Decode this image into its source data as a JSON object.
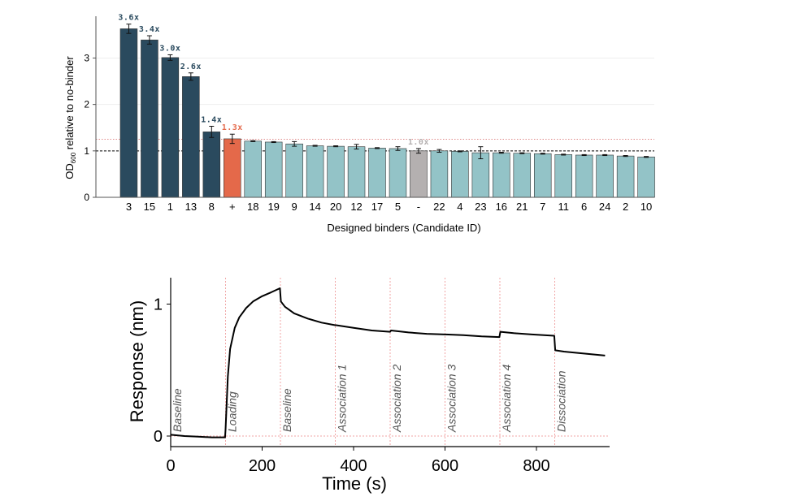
{
  "chart_data": [
    {
      "type": "bar",
      "xlabel": "Designed binders (Candidate ID)",
      "ylabel_prefix": "OD",
      "ylabel_sub": "600",
      "ylabel_suffix": " relative to no-binder",
      "ylim": [
        0,
        3.9
      ],
      "yticks": [
        0,
        1,
        2,
        3
      ],
      "reference_lines": [
        {
          "value": 1.0,
          "style": "dashed",
          "color": "#000000"
        },
        {
          "value": 1.25,
          "style": "dotted",
          "color": "#e08a8a"
        }
      ],
      "colors": {
        "top": "#2a4a5e",
        "positive": "#e4694a",
        "negative": "#b4b0b0",
        "other": "#93c3c7"
      },
      "bars": [
        {
          "id": "3",
          "value": 3.63,
          "err": 0.1,
          "group": "top",
          "label": "3.6x"
        },
        {
          "id": "15",
          "value": 3.39,
          "err": 0.09,
          "group": "top",
          "label": "3.4x"
        },
        {
          "id": "1",
          "value": 3.01,
          "err": 0.06,
          "group": "top",
          "label": "3.0x"
        },
        {
          "id": "13",
          "value": 2.6,
          "err": 0.08,
          "group": "top",
          "label": "2.6x"
        },
        {
          "id": "8",
          "value": 1.41,
          "err": 0.12,
          "group": "top",
          "label": "1.4x"
        },
        {
          "id": "+",
          "value": 1.26,
          "err": 0.1,
          "group": "positive",
          "label": "1.3x"
        },
        {
          "id": "18",
          "value": 1.21,
          "err": 0.01,
          "group": "other"
        },
        {
          "id": "19",
          "value": 1.19,
          "err": 0.01,
          "group": "other"
        },
        {
          "id": "9",
          "value": 1.15,
          "err": 0.05,
          "group": "other"
        },
        {
          "id": "14",
          "value": 1.11,
          "err": 0.01,
          "group": "other"
        },
        {
          "id": "20",
          "value": 1.1,
          "err": 0.01,
          "group": "other"
        },
        {
          "id": "12",
          "value": 1.09,
          "err": 0.05,
          "group": "other"
        },
        {
          "id": "17",
          "value": 1.06,
          "err": 0.01,
          "group": "other"
        },
        {
          "id": "5",
          "value": 1.05,
          "err": 0.04,
          "group": "other"
        },
        {
          "id": "-",
          "value": 1.0,
          "err": 0.05,
          "group": "negative",
          "label": "1.0x"
        },
        {
          "id": "22",
          "value": 1.0,
          "err": 0.03,
          "group": "other"
        },
        {
          "id": "4",
          "value": 0.99,
          "err": 0.01,
          "group": "other"
        },
        {
          "id": "23",
          "value": 0.96,
          "err": 0.13,
          "group": "other"
        },
        {
          "id": "16",
          "value": 0.96,
          "err": 0.01,
          "group": "other"
        },
        {
          "id": "21",
          "value": 0.95,
          "err": 0.01,
          "group": "other"
        },
        {
          "id": "7",
          "value": 0.94,
          "err": 0.01,
          "group": "other"
        },
        {
          "id": "11",
          "value": 0.92,
          "err": 0.01,
          "group": "other"
        },
        {
          "id": "6",
          "value": 0.91,
          "err": 0.01,
          "group": "other"
        },
        {
          "id": "24",
          "value": 0.91,
          "err": 0.01,
          "group": "other"
        },
        {
          "id": "2",
          "value": 0.89,
          "err": 0.01,
          "group": "other"
        },
        {
          "id": "10",
          "value": 0.87,
          "err": 0.01,
          "group": "other"
        }
      ]
    },
    {
      "type": "line",
      "xlabel": "Time (s)",
      "ylabel": "Response (nm)",
      "xlim": [
        0,
        960
      ],
      "ylim": [
        -0.08,
        1.2
      ],
      "xticks": [
        0,
        200,
        400,
        600,
        800
      ],
      "yticks": [
        0,
        1
      ],
      "phase_boundaries": [
        120,
        240,
        360,
        480,
        600,
        720,
        840
      ],
      "phases": [
        {
          "start": 0,
          "label": "Baseline"
        },
        {
          "start": 120,
          "label": "Loading"
        },
        {
          "start": 240,
          "label": "Baseline"
        },
        {
          "start": 360,
          "label": "Association 1"
        },
        {
          "start": 480,
          "label": "Association 2"
        },
        {
          "start": 600,
          "label": "Association 3"
        },
        {
          "start": 720,
          "label": "Association 4"
        },
        {
          "start": 840,
          "label": "Dissociation"
        }
      ],
      "series": [
        {
          "name": "Response",
          "points": [
            [
              0,
              0.01
            ],
            [
              30,
              0.0
            ],
            [
              60,
              -0.005
            ],
            [
              90,
              -0.01
            ],
            [
              119,
              -0.01
            ],
            [
              120,
              0.05
            ],
            [
              125,
              0.45
            ],
            [
              130,
              0.66
            ],
            [
              140,
              0.82
            ],
            [
              150,
              0.9
            ],
            [
              165,
              0.97
            ],
            [
              180,
              1.02
            ],
            [
              200,
              1.06
            ],
            [
              220,
              1.09
            ],
            [
              239,
              1.12
            ],
            [
              241,
              1.02
            ],
            [
              250,
              0.98
            ],
            [
              270,
              0.93
            ],
            [
              300,
              0.89
            ],
            [
              330,
              0.86
            ],
            [
              360,
              0.84
            ],
            [
              362,
              0.84
            ],
            [
              400,
              0.82
            ],
            [
              440,
              0.8
            ],
            [
              480,
              0.79
            ],
            [
              482,
              0.8
            ],
            [
              520,
              0.785
            ],
            [
              560,
              0.775
            ],
            [
              600,
              0.77
            ],
            [
              602,
              0.77
            ],
            [
              640,
              0.765
            ],
            [
              680,
              0.755
            ],
            [
              719,
              0.75
            ],
            [
              721,
              0.79
            ],
            [
              750,
              0.78
            ],
            [
              790,
              0.77
            ],
            [
              839,
              0.76
            ],
            [
              841,
              0.65
            ],
            [
              860,
              0.64
            ],
            [
              890,
              0.63
            ],
            [
              920,
              0.62
            ],
            [
              950,
              0.61
            ]
          ]
        }
      ]
    }
  ]
}
